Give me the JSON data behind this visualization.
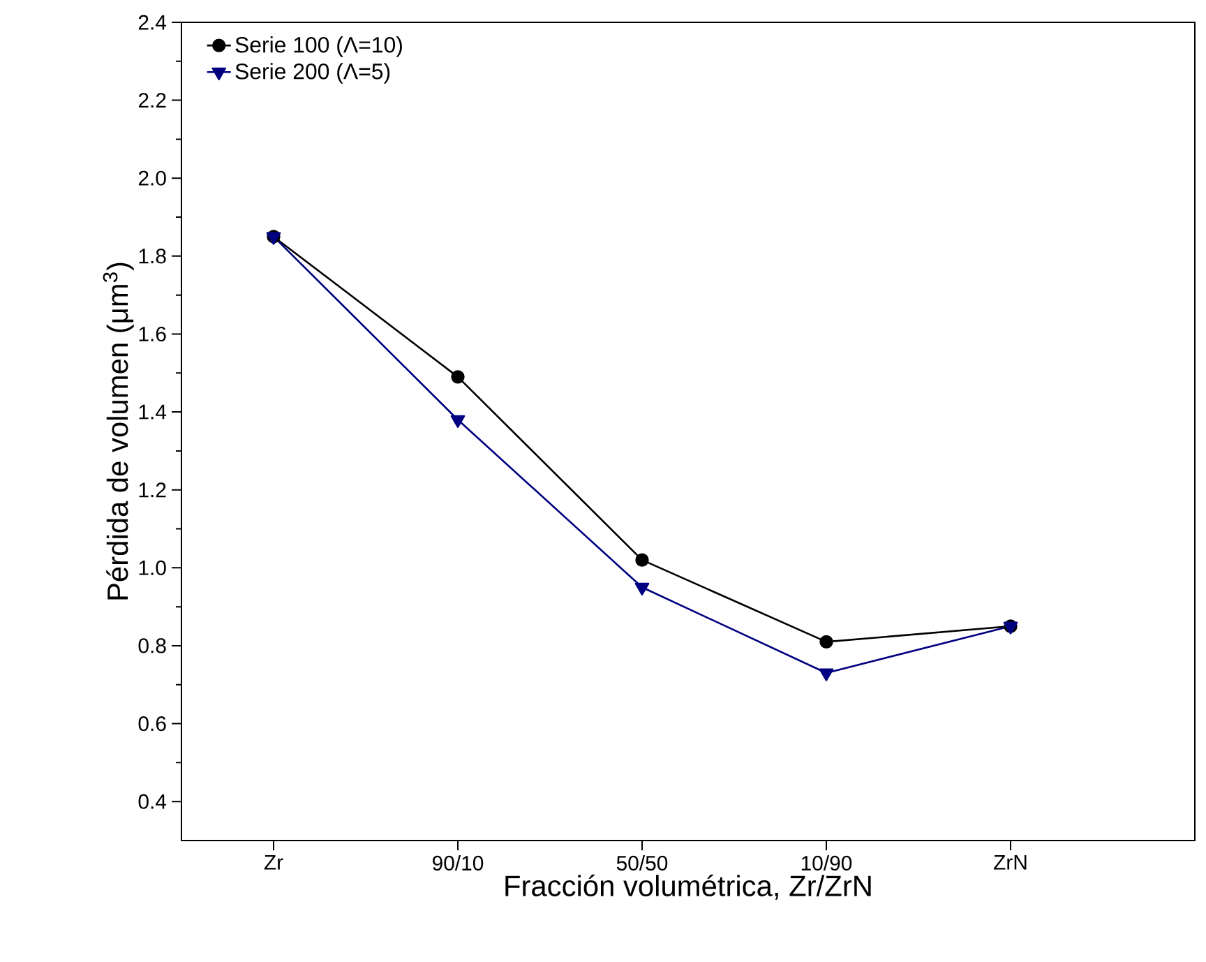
{
  "chart_data": {
    "type": "line",
    "xlabel": "Fracción volumétrica, Zr/ZrN",
    "ylabel": "Pérdida de volumen (μm$^{3}$)",
    "categories": [
      "Zr",
      "90/10",
      "50/50",
      "10/90",
      "ZrN"
    ],
    "series": [
      {
        "name": "Serie 100 (Λ=10)",
        "color": "#000000",
        "marker": "circle",
        "values": [
          1.85,
          1.49,
          1.02,
          0.81,
          0.85
        ]
      },
      {
        "name": "Serie 200 (Λ=5)",
        "color": "#000080",
        "marker": "triangle",
        "values": [
          1.85,
          1.38,
          0.95,
          0.73,
          0.85
        ]
      }
    ],
    "ylim": [
      0.3,
      2.4
    ],
    "yticks": [
      0.4,
      0.6,
      0.8,
      {
        "value": 1.0,
        "label": "1.0"
      },
      1.2,
      1.4,
      1.6,
      1.8,
      {
        "value": 2.0,
        "label": "2.0"
      },
      2.2,
      2.4
    ],
    "legend": "top left",
    "grid": false,
    "line_style": "solid"
  }
}
